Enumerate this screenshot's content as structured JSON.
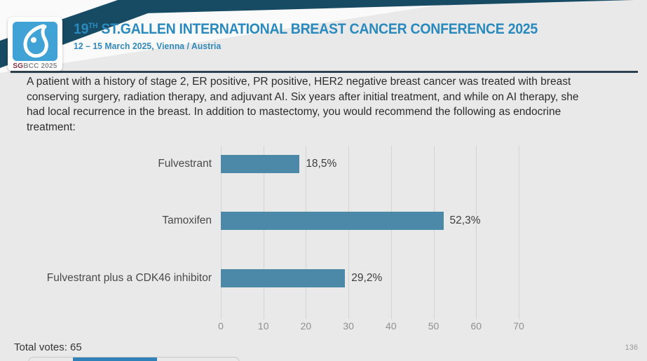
{
  "header": {
    "logo": {
      "icon": "sgbcc-drop-logo",
      "badge_sg": "SG",
      "badge_rest": "BCC 2025"
    },
    "title_number": "19",
    "title_ordinal": "TH",
    "title_rest": " ST.GALLEN INTERNATIONAL BREAST CANCER CONFERENCE 2025",
    "subtitle": "12 – 15 March 2025, Vienna / Austria",
    "colors": {
      "title_blue": "#2a8abd",
      "ribbon_navy": "#174a63",
      "logo_blue": "#41a2d6"
    }
  },
  "question": {
    "text": "A patient with a history of stage 2, ER positive, PR positive, HER2 negative breast cancer was treated with breast conserving surgery, radiation therapy, and adjuvant AI.  Six years after initial treatment, and while on AI therapy, she had local recurrence in the breast.  In addition to mastectomy, you would recommend the following as endocrine treatment:"
  },
  "chart_data": {
    "type": "bar",
    "orientation": "horizontal",
    "categories": [
      "Fulvestrant",
      "Tamoxifen",
      "Fulvestrant plus a CDK46 inhibitor"
    ],
    "values": [
      18.5,
      52.3,
      29.2
    ],
    "value_labels": [
      "18,5%",
      "52,3%",
      "29,2%"
    ],
    "xlim": [
      0,
      70
    ],
    "x_ticks": [
      0,
      10,
      20,
      30,
      40,
      50,
      60,
      70
    ],
    "grid": true,
    "legend": false,
    "bar_color": "#4c89a8",
    "title": "",
    "xlabel": "",
    "ylabel": ""
  },
  "footer": {
    "total_votes_label": "Total votes: 65",
    "page_number": "136"
  }
}
